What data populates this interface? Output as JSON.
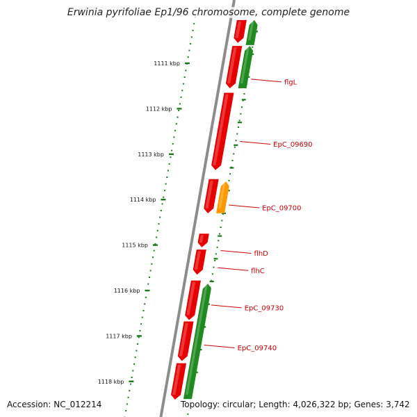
{
  "title": "Erwinia pyrifoliae Ep1/96 chromosome, complete genome",
  "footer": {
    "accession": "Accession: NC_012214",
    "summary": "Topology: circular; Length: 4,026,322 bp; Genes: 3,742"
  },
  "colors": {
    "backbone": "#8c8c8c",
    "forward_gene": "#e60000",
    "reverse_gene": "#1f8a1f",
    "other_feature": "#ff9900",
    "label": "#cc0000",
    "tick": "#1a7a1a"
  },
  "ruler": [
    {
      "position_kbp": 1111,
      "label": "1111 kbp"
    },
    {
      "position_kbp": 1112,
      "label": "1112 kbp"
    },
    {
      "position_kbp": 1113,
      "label": "1113 kbp"
    },
    {
      "position_kbp": 1114,
      "label": "1114 kbp"
    },
    {
      "position_kbp": 1115,
      "label": "1115 kbp"
    },
    {
      "position_kbp": 1116,
      "label": "1116 kbp"
    },
    {
      "position_kbp": 1117,
      "label": "1117 kbp"
    },
    {
      "position_kbp": 1118,
      "label": "1118 kbp"
    }
  ],
  "features": [
    {
      "track": "forward",
      "type": "CDS",
      "start_kbp": 1110.05,
      "end_kbp": 1110.55
    },
    {
      "track": "forward",
      "type": "CDS",
      "start_kbp": 1110.62,
      "end_kbp": 1111.55
    },
    {
      "track": "forward",
      "type": "CDS",
      "start_kbp": 1111.65,
      "end_kbp": 1113.35
    },
    {
      "track": "forward",
      "type": "CDS",
      "start_kbp": 1113.55,
      "end_kbp": 1114.3
    },
    {
      "track": "forward",
      "type": "CDS",
      "start_kbp": 1114.75,
      "end_kbp": 1115.05
    },
    {
      "track": "forward",
      "type": "CDS",
      "start_kbp": 1115.1,
      "end_kbp": 1115.65
    },
    {
      "track": "forward",
      "type": "CDS",
      "start_kbp": 1115.78,
      "end_kbp": 1116.65
    },
    {
      "track": "forward",
      "type": "CDS",
      "start_kbp": 1116.68,
      "end_kbp": 1117.55
    },
    {
      "track": "forward",
      "type": "CDS",
      "start_kbp": 1117.6,
      "end_kbp": 1118.4
    },
    {
      "track": "reverse",
      "type": "CDS",
      "start_kbp": 1110.05,
      "end_kbp": 1110.6
    },
    {
      "track": "reverse",
      "type": "CDS",
      "start_kbp": 1110.62,
      "end_kbp": 1111.55
    },
    {
      "track": "reverse",
      "type": "misc",
      "start_kbp": 1113.6,
      "end_kbp": 1114.3
    },
    {
      "track": "reverse",
      "type": "CDS",
      "start_kbp": 1115.85,
      "end_kbp": 1118.4
    }
  ],
  "gene_labels": [
    {
      "name": "flgL",
      "at_kbp": 1111.35
    },
    {
      "name": "EpC_09690",
      "at_kbp": 1112.72
    },
    {
      "name": "EpC_09700",
      "at_kbp": 1114.12
    },
    {
      "name": "flhD",
      "at_kbp": 1115.12
    },
    {
      "name": "flhC",
      "at_kbp": 1115.5
    },
    {
      "name": "EpC_09730",
      "at_kbp": 1116.32
    },
    {
      "name": "EpC_09740",
      "at_kbp": 1117.2
    }
  ]
}
